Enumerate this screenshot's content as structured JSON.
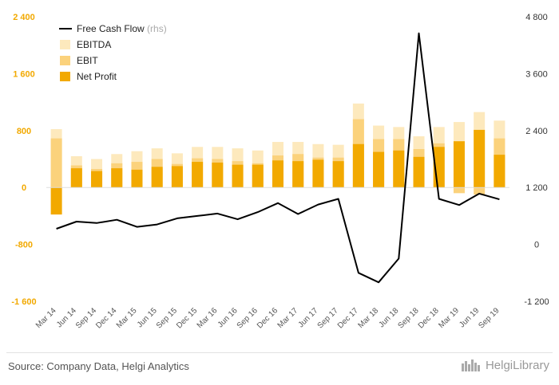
{
  "chart_data": {
    "type": "bar",
    "categories": [
      "Mar 14",
      "Jun 14",
      "Sep 14",
      "Dec 14",
      "Mar 15",
      "Jun 15",
      "Sep 15",
      "Dec 15",
      "Mar 16",
      "Jun 16",
      "Sep 16",
      "Dec 16",
      "Mar 17",
      "Jun 17",
      "Sep 17",
      "Dec 17",
      "Mar 18",
      "Jun 18",
      "Sep 18",
      "Dec 18",
      "Mar 19",
      "Jun 19",
      "Sep 19"
    ],
    "series": [
      {
        "name": "EBITDA",
        "axis": "left",
        "kind": "bar-overlay",
        "color": "#fde9bd",
        "values": [
          820,
          440,
          400,
          470,
          510,
          550,
          480,
          570,
          570,
          550,
          520,
          640,
          640,
          610,
          600,
          1180,
          870,
          850,
          720,
          850,
          920,
          1060,
          940
        ]
      },
      {
        "name": "EBIT",
        "axis": "left",
        "kind": "bar-overlay",
        "color": "#fbd27c",
        "values": [
          690,
          310,
          260,
          340,
          360,
          400,
          330,
          410,
          400,
          370,
          340,
          450,
          470,
          420,
          420,
          960,
          680,
          680,
          540,
          620,
          -80,
          -100,
          690
        ]
      },
      {
        "name": "Net Profit",
        "axis": "left",
        "kind": "bar-overlay",
        "color": "#f2a900",
        "values": [
          -380,
          270,
          230,
          270,
          250,
          290,
          300,
          360,
          350,
          320,
          320,
          380,
          370,
          390,
          370,
          610,
          500,
          520,
          430,
          570,
          650,
          810,
          460
        ]
      },
      {
        "name": "Free Cash Flow",
        "unit": "(rhs)",
        "axis": "right",
        "kind": "line",
        "color": "#000000",
        "values": [
          330,
          480,
          450,
          520,
          370,
          420,
          550,
          600,
          650,
          530,
          680,
          870,
          640,
          840,
          960,
          -600,
          -800,
          -300,
          4450,
          960,
          830,
          1070,
          950
        ]
      }
    ],
    "y_left": {
      "range": [
        -1600,
        2400
      ],
      "ticks": [
        "2 400",
        "1 600",
        "800",
        "0",
        "-800",
        "-1 600"
      ],
      "tick_values": [
        2400,
        1600,
        800,
        0,
        -800,
        -1600
      ],
      "color": "#f2a900"
    },
    "y_right": {
      "range": [
        -1200,
        4800
      ],
      "ticks": [
        "4 800",
        "3 600",
        "2 400",
        "1 200",
        "0",
        "-1 200"
      ],
      "tick_values": [
        4800,
        3600,
        2400,
        1200,
        0,
        -1200
      ]
    },
    "legend_order": [
      "Free Cash Flow",
      "EBITDA",
      "EBIT",
      "Net Profit"
    ],
    "legend_placement": "top-left",
    "grid": false
  },
  "footer": {
    "source": "Source: Company Data, Helgi Analytics",
    "brand": "HelgiLibrary"
  }
}
